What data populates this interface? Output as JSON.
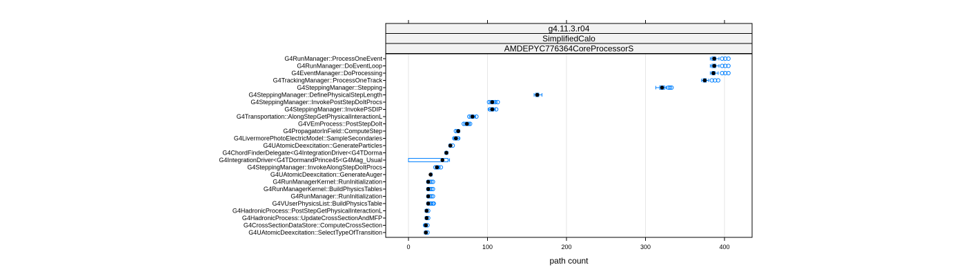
{
  "chart_data": {
    "type": "box-dot",
    "title": "",
    "xlabel": "path count",
    "ylabel": "",
    "strips": [
      "g4.11.3.r04",
      "SimplifiedCalo",
      "AMDEPYC776364CoreProcessorS"
    ],
    "xlim": [
      -30,
      435
    ],
    "xticks": [
      0,
      100,
      200,
      300,
      400
    ],
    "grid": "vertical",
    "colors": {
      "box": "#0080ff",
      "point": "#000000",
      "open_point": "#0080ff"
    },
    "categories": [
      "G4RunManager::ProcessOneEvent",
      "G4RunManager::DoEventLoop",
      "G4EventManager::DoProcessing",
      "G4TrackingManager::ProcessOneTrack",
      "G4SteppingManager::Stepping",
      "G4SteppingManager::DefinePhysicalStepLength",
      "G4SteppingManager::InvokePostStepDoItProcs",
      "G4SteppingManager::InvokePSDIP",
      "G4Transportation::AlongStepGetPhysicalInteractionL",
      "G4VEmProcess::PostStepDoIt",
      "G4PropagatorInField::ComputeStep",
      "G4LivermorePhotoElectricModel::SampleSecondaries",
      "G4UAtomicDeexcitation::GenerateParticles",
      "G4ChordFinderDelegate<G4IntegrationDriver<G4TDorma",
      "G4IntegrationDriver<G4TDormandPrince45<G4Mag_Usual",
      "G4SteppingManager::InvokeAlongStepDoItProcs",
      "G4UAtomicDeexcitation::GenerateAuger",
      "G4RunManagerKernel::RunInitialization",
      "G4RunManagerKernel::BuildPhysicsTables",
      "G4RunManager::RunInitialization",
      "G4VUserPhysicsList::BuildPhysicsTable",
      "G4HadronicProcess::PostStepGetPhysicalInteractionL",
      "G4HadronicProcess::UpdateCrossSectionAndMFP",
      "G4CrossSectionDataStore::ComputeCrossSection",
      "G4UAtomicDeexcitation::SelectTypeOfTransition"
    ],
    "series": [
      {
        "median": 387,
        "q1": 384,
        "q3": 389,
        "wmin": 382,
        "wmax": 393,
        "outliers": [
          397,
          401,
          405
        ]
      },
      {
        "median": 387,
        "q1": 384,
        "q3": 389,
        "wmin": 382,
        "wmax": 393,
        "outliers": [
          397,
          401,
          405
        ]
      },
      {
        "median": 386,
        "q1": 384,
        "q3": 388,
        "wmin": 382,
        "wmax": 392,
        "outliers": [
          397,
          401,
          405
        ]
      },
      {
        "median": 375,
        "q1": 373,
        "q3": 377,
        "wmin": 371,
        "wmax": 380,
        "outliers": [
          384,
          388,
          392
        ]
      },
      {
        "median": 321,
        "q1": 318,
        "q3": 324,
        "wmin": 313,
        "wmax": 326,
        "outliers": [
          329,
          331,
          333
        ]
      },
      {
        "median": 163,
        "q1": 161,
        "q3": 165,
        "wmin": 159,
        "wmax": 169,
        "outliers": []
      },
      {
        "median": 106,
        "q1": 104,
        "q3": 108,
        "wmin": 102,
        "wmax": 110,
        "outliers": [
          102,
          110,
          113
        ]
      },
      {
        "median": 106,
        "q1": 104,
        "q3": 108,
        "wmin": 102,
        "wmax": 110,
        "outliers": [
          103,
          111
        ]
      },
      {
        "median": 81,
        "q1": 79,
        "q3": 83,
        "wmin": 77,
        "wmax": 85,
        "outliers": [
          77,
          86
        ]
      },
      {
        "median": 74,
        "q1": 72,
        "q3": 76,
        "wmin": 70,
        "wmax": 78,
        "outliers": [
          70,
          76,
          78
        ]
      },
      {
        "median": 63,
        "q1": 62,
        "q3": 64,
        "wmin": 60,
        "wmax": 65,
        "outliers": [
          60
        ]
      },
      {
        "median": 60,
        "q1": 59,
        "q3": 62,
        "wmin": 57,
        "wmax": 64,
        "outliers": [
          58,
          63
        ]
      },
      {
        "median": 53,
        "q1": 52,
        "q3": 54,
        "wmin": 51,
        "wmax": 55,
        "outliers": [
          56
        ]
      },
      {
        "median": 48,
        "q1": 47,
        "q3": 49,
        "wmin": 46,
        "wmax": 50,
        "outliers": []
      },
      {
        "median": 43,
        "q1": 0,
        "q3": 50,
        "wmin": 0,
        "wmax": 52,
        "outliers": []
      },
      {
        "median": 36,
        "q1": 35,
        "q3": 38,
        "wmin": 34,
        "wmax": 39,
        "outliers": [
          34,
          38,
          41
        ]
      },
      {
        "median": 28,
        "q1": 28,
        "q3": 29,
        "wmin": 27,
        "wmax": 30,
        "outliers": []
      },
      {
        "median": 25,
        "q1": 24,
        "q3": 26,
        "wmin": 23,
        "wmax": 27,
        "outliers": [
          27,
          29,
          31
        ]
      },
      {
        "median": 25,
        "q1": 24,
        "q3": 26,
        "wmin": 23,
        "wmax": 27,
        "outliers": [
          27,
          29,
          31
        ]
      },
      {
        "median": 25,
        "q1": 24,
        "q3": 26,
        "wmin": 23,
        "wmax": 27,
        "outliers": [
          27,
          29,
          31
        ]
      },
      {
        "median": 25,
        "q1": 24,
        "q3": 26,
        "wmin": 23,
        "wmax": 27,
        "outliers": [
          27,
          29,
          31,
          32
        ]
      },
      {
        "median": 23,
        "q1": 22,
        "q3": 24,
        "wmin": 21,
        "wmax": 25,
        "outliers": [
          25
        ]
      },
      {
        "median": 23,
        "q1": 22,
        "q3": 24,
        "wmin": 21,
        "wmax": 25,
        "outliers": [
          25
        ]
      },
      {
        "median": 22,
        "q1": 21,
        "q3": 23,
        "wmin": 20,
        "wmax": 24,
        "outliers": [
          21,
          24
        ]
      },
      {
        "median": 22,
        "q1": 21,
        "q3": 23,
        "wmin": 20,
        "wmax": 24,
        "outliers": [
          24
        ]
      }
    ]
  }
}
